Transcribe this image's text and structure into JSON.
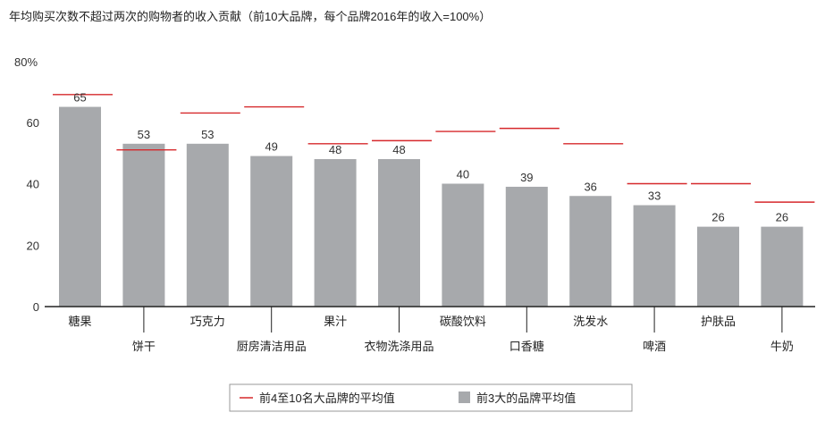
{
  "chart_data": {
    "type": "bar",
    "title": "年均购买次数不超过两次的购物者的收入贡献（前10大品牌，每个品牌2016年的收入=100%）",
    "y_axis_top_label": "80%",
    "yticks": [
      "0",
      "20",
      "40",
      "60"
    ],
    "ylim": [
      0,
      80
    ],
    "grid": false,
    "categories": [
      "糖果",
      "饼干",
      "巧克力",
      "厨房清洁用品",
      "果汁",
      "衣物洗涤用品",
      "碳酸饮料",
      "口香糖",
      "洗发水",
      "啤酒",
      "护肤品",
      "牛奶"
    ],
    "series": [
      {
        "name": "前3大的品牌平均值",
        "kind": "bar",
        "color": "#a7a9ac",
        "values": [
          65,
          53,
          53,
          49,
          48,
          48,
          40,
          39,
          36,
          33,
          26,
          26
        ]
      },
      {
        "name": "前4至10名大品牌的平均值",
        "kind": "marker-line",
        "color": "#d6282b",
        "values": [
          69,
          51,
          63,
          65,
          53,
          54,
          57,
          58,
          53,
          40,
          40,
          34
        ]
      }
    ],
    "legend_position": "bottom-center"
  }
}
